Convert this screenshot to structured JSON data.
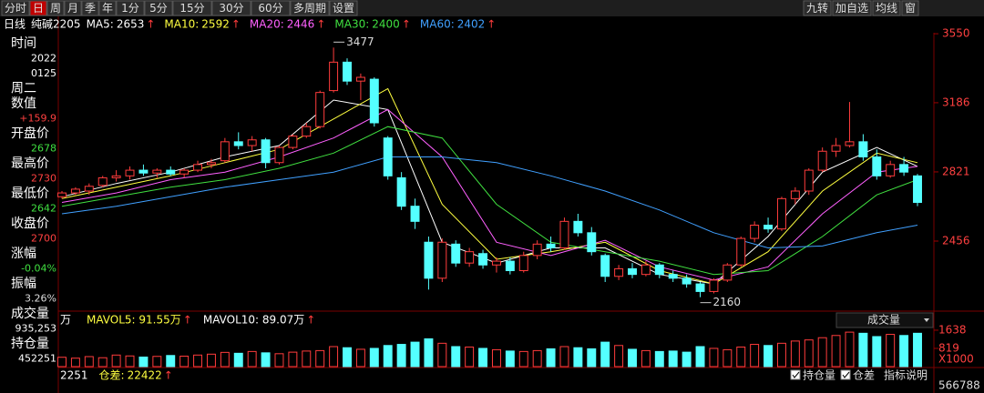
{
  "toolbar": {
    "tabs": [
      "分时",
      "日",
      "周",
      "月",
      "季",
      "年",
      "1分",
      "5分",
      "15分",
      "30分",
      "60分",
      "多周期",
      "设置"
    ],
    "tools": [
      "九转",
      "加自选",
      "均线",
      "窗"
    ]
  },
  "sidebar": [
    {
      "text": "时间",
      "color": "#ffffff"
    },
    {
      "text": "2022",
      "color": "#ffffff"
    },
    {
      "text": "0125",
      "color": "#ffffff"
    },
    {
      "text": "周二",
      "color": "#ffffff"
    },
    {
      "text": "数值",
      "color": "#ffffff"
    },
    {
      "text": "+159.9",
      "color": "#ff4040"
    },
    {
      "text": "开盘价",
      "color": "#ffffff"
    },
    {
      "text": "2678",
      "color": "#40e040"
    },
    {
      "text": "最高价",
      "color": "#ffffff"
    },
    {
      "text": "2730",
      "color": "#ff4040"
    },
    {
      "text": "最低价",
      "color": "#ffffff"
    },
    {
      "text": "2642",
      "color": "#40e040"
    },
    {
      "text": "收盘价",
      "color": "#ffffff"
    },
    {
      "text": "2700",
      "color": "#ff4040"
    },
    {
      "text": "涨幅",
      "color": "#ffffff"
    },
    {
      "text": "-0.04%",
      "color": "#40e040"
    },
    {
      "text": "振幅",
      "color": "#ffffff"
    },
    {
      "text": "3.26%",
      "color": "#dddddd"
    },
    {
      "text": "成交量",
      "color": "#ffffff"
    },
    {
      "text": "935,253",
      "color": "#ffffff"
    },
    {
      "text": "持仓量",
      "color": "#ffffff"
    },
    {
      "text": "452251",
      "color": "#ffffff"
    }
  ],
  "chart_data": {
    "type": "candlestick",
    "period": "日线",
    "symbol": "纯碱2205",
    "up_color": "#ff3c3c",
    "down_color": "#54ffff",
    "trend_color": "#ff3c3c",
    "ylim": [
      2096,
      3632
    ],
    "yticks": [
      2456,
      2821,
      3186,
      3550
    ],
    "high_label": 3477,
    "low_label": 2160,
    "candles": [
      [
        2690,
        2720,
        2680,
        2710
      ],
      [
        2710,
        2740,
        2700,
        2730
      ],
      [
        2720,
        2760,
        2700,
        2745
      ],
      [
        2750,
        2800,
        2740,
        2790
      ],
      [
        2790,
        2830,
        2770,
        2800
      ],
      [
        2800,
        2850,
        2780,
        2830
      ],
      [
        2830,
        2860,
        2800,
        2815
      ],
      [
        2815,
        2840,
        2790,
        2830
      ],
      [
        2830,
        2850,
        2800,
        2810
      ],
      [
        2810,
        2840,
        2790,
        2830
      ],
      [
        2830,
        2880,
        2820,
        2860
      ],
      [
        2860,
        2890,
        2840,
        2870
      ],
      [
        2880,
        3000,
        2870,
        2980
      ],
      [
        2980,
        3030,
        2940,
        2960
      ],
      [
        2960,
        3010,
        2930,
        2990
      ],
      [
        2990,
        3000,
        2840,
        2870
      ],
      [
        2870,
        2960,
        2860,
        2950
      ],
      [
        2950,
        3020,
        2940,
        3010
      ],
      [
        3010,
        3080,
        3000,
        3060
      ],
      [
        3060,
        3250,
        3050,
        3240
      ],
      [
        3250,
        3477,
        3240,
        3400
      ],
      [
        3400,
        3420,
        3280,
        3300
      ],
      [
        3300,
        3340,
        3200,
        3320
      ],
      [
        3310,
        3320,
        3060,
        3080
      ],
      [
        3000,
        3010,
        2780,
        2800
      ],
      [
        2790,
        2820,
        2620,
        2640
      ],
      [
        2640,
        2680,
        2520,
        2560
      ],
      [
        2450,
        2480,
        2200,
        2260
      ],
      [
        2260,
        2470,
        2240,
        2450
      ],
      [
        2440,
        2460,
        2320,
        2340
      ],
      [
        2340,
        2420,
        2320,
        2400
      ],
      [
        2390,
        2410,
        2310,
        2330
      ],
      [
        2330,
        2370,
        2290,
        2350
      ],
      [
        2350,
        2370,
        2280,
        2300
      ],
      [
        2300,
        2400,
        2290,
        2380
      ],
      [
        2380,
        2460,
        2360,
        2440
      ],
      [
        2440,
        2480,
        2400,
        2420
      ],
      [
        2420,
        2580,
        2410,
        2560
      ],
      [
        2560,
        2600,
        2480,
        2500
      ],
      [
        2500,
        2530,
        2380,
        2400
      ],
      [
        2380,
        2390,
        2240,
        2270
      ],
      [
        2270,
        2330,
        2250,
        2310
      ],
      [
        2310,
        2340,
        2260,
        2280
      ],
      [
        2280,
        2350,
        2270,
        2330
      ],
      [
        2330,
        2340,
        2260,
        2280
      ],
      [
        2280,
        2300,
        2240,
        2260
      ],
      [
        2260,
        2280,
        2210,
        2230
      ],
      [
        2230,
        2240,
        2160,
        2190
      ],
      [
        2190,
        2260,
        2180,
        2250
      ],
      [
        2250,
        2340,
        2240,
        2330
      ],
      [
        2330,
        2480,
        2320,
        2470
      ],
      [
        2470,
        2560,
        2450,
        2540
      ],
      [
        2540,
        2580,
        2500,
        2520
      ],
      [
        2520,
        2690,
        2510,
        2680
      ],
      [
        2680,
        2740,
        2650,
        2720
      ],
      [
        2720,
        2840,
        2700,
        2830
      ],
      [
        2830,
        2950,
        2820,
        2930
      ],
      [
        2930,
        3000,
        2900,
        2960
      ],
      [
        2960,
        3190,
        2950,
        2980
      ],
      [
        2980,
        3020,
        2880,
        2900
      ],
      [
        2900,
        2940,
        2780,
        2800
      ],
      [
        2800,
        2880,
        2790,
        2860
      ],
      [
        2860,
        2900,
        2800,
        2820
      ],
      [
        2800,
        2810,
        2640,
        2660
      ]
    ],
    "ma_x": [
      0,
      4,
      8,
      12,
      16,
      20,
      24,
      28,
      32,
      36,
      40,
      44,
      48,
      52,
      56,
      60,
      63
    ],
    "ma": [
      {
        "name": "MA5:",
        "value": 2653,
        "trend": "↑",
        "color": "#ffffff",
        "values": [
          2690,
          2760,
          2820,
          2900,
          2960,
          3200,
          3150,
          2450,
          2340,
          2420,
          2420,
          2280,
          2230,
          2480,
          2820,
          2950,
          2850
        ]
      },
      {
        "name": "MA10:",
        "value": 2592,
        "trend": "↑",
        "color": "#ffff40",
        "values": [
          2680,
          2740,
          2800,
          2870,
          2940,
          3100,
          3260,
          2650,
          2360,
          2400,
          2450,
          2300,
          2230,
          2400,
          2720,
          2920,
          2870
        ]
      },
      {
        "name": "MA20:",
        "value": 2446,
        "trend": "↑",
        "color": "#ff60ff",
        "values": [
          2660,
          2710,
          2780,
          2820,
          2900,
          3000,
          3150,
          2900,
          2450,
          2380,
          2460,
          2320,
          2250,
          2320,
          2600,
          2820,
          2850
        ]
      },
      {
        "name": "MA30:",
        "value": 2400,
        "trend": "↑",
        "color": "#40e040",
        "values": [
          2640,
          2690,
          2740,
          2780,
          2840,
          2920,
          3060,
          3000,
          2650,
          2450,
          2400,
          2350,
          2280,
          2300,
          2480,
          2700,
          2780
        ]
      },
      {
        "name": "MA60:",
        "value": 2402,
        "trend": "↑",
        "color": "#40a0ff",
        "values": [
          2600,
          2640,
          2690,
          2740,
          2780,
          2820,
          2900,
          2900,
          2870,
          2800,
          2720,
          2620,
          2500,
          2420,
          2430,
          2500,
          2540
        ]
      }
    ],
    "volume": {
      "title": "成交量",
      "left_cut": "万",
      "unit": "X1000",
      "ylim": [
        0,
        1800
      ],
      "yticks": [
        819,
        1638
      ],
      "ma_legend": [
        {
          "name": "MAVOL5: 91.55万",
          "trend": "↑",
          "color": "#ffff40"
        },
        {
          "name": "MAVOL10: 89.07万",
          "trend": "↑",
          "color": "#ffffff"
        }
      ],
      "values": [
        420,
        380,
        450,
        400,
        520,
        480,
        430,
        460,
        500,
        470,
        520,
        560,
        640,
        600,
        680,
        620,
        580,
        650,
        700,
        720,
        900,
        850,
        780,
        820,
        950,
        1000,
        1100,
        1250,
        1050,
        900,
        880,
        820,
        760,
        700,
        680,
        720,
        800,
        900,
        850,
        800,
        1100,
        950,
        780,
        720,
        680,
        700,
        650,
        900,
        820,
        760,
        880,
        1000,
        950,
        1050,
        1150,
        1200,
        1300,
        1400,
        1550,
        1500,
        1350,
        1450,
        1400,
        1500
      ]
    },
    "open_interest": {
      "left_cut": "2251",
      "diff_name": "仓差:",
      "diff_value": 22422,
      "diff_trend": "↑",
      "checkboxes": [
        "持仓量",
        "仓差"
      ],
      "help": "指标说明",
      "axis_label": "566788"
    }
  }
}
